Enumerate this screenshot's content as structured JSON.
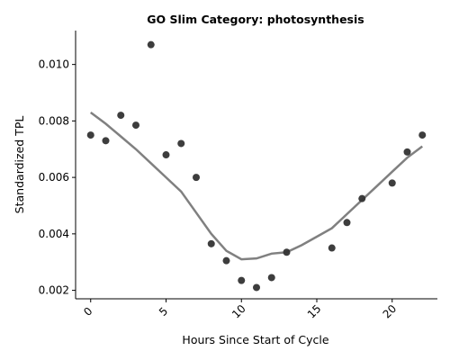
{
  "chart_data": {
    "type": "scatter",
    "title": "GO Slim Category: photosynthesis",
    "xlabel": "Hours Since Start of Cycle",
    "ylabel": "Standardized TPL",
    "xlim": [
      -1,
      23
    ],
    "ylim": [
      0.0017,
      0.0112
    ],
    "x_ticks": [
      0,
      5,
      10,
      15,
      20
    ],
    "y_ticks": [
      0.002,
      0.004,
      0.006,
      0.008,
      0.01
    ],
    "y_tick_labels": [
      "0.002",
      "0.004",
      "0.006",
      "0.008",
      "0.010"
    ],
    "x_tick_labels": [
      "0",
      "5",
      "10",
      "15",
      "20"
    ],
    "grid": false,
    "colors": {
      "points": "#333333",
      "trend": "#808080"
    },
    "series": [
      {
        "type": "scatter",
        "points": [
          {
            "x": 0,
            "y": 0.0075
          },
          {
            "x": 1,
            "y": 0.0073
          },
          {
            "x": 2,
            "y": 0.0082
          },
          {
            "x": 3,
            "y": 0.00785
          },
          {
            "x": 4,
            "y": 0.0107
          },
          {
            "x": 5,
            "y": 0.0068
          },
          {
            "x": 6,
            "y": 0.0072
          },
          {
            "x": 7,
            "y": 0.006
          },
          {
            "x": 8,
            "y": 0.00365
          },
          {
            "x": 9,
            "y": 0.00305
          },
          {
            "x": 10,
            "y": 0.00235
          },
          {
            "x": 11,
            "y": 0.0021
          },
          {
            "x": 12,
            "y": 0.00245
          },
          {
            "x": 13,
            "y": 0.00335
          },
          {
            "x": 16,
            "y": 0.0035
          },
          {
            "x": 17,
            "y": 0.0044
          },
          {
            "x": 18,
            "y": 0.00525
          },
          {
            "x": 20,
            "y": 0.0058
          },
          {
            "x": 21,
            "y": 0.0069
          },
          {
            "x": 22,
            "y": 0.0075
          }
        ]
      },
      {
        "type": "line",
        "points": [
          {
            "x": 0,
            "y": 0.0083
          },
          {
            "x": 1,
            "y": 0.0079
          },
          {
            "x": 2,
            "y": 0.00745
          },
          {
            "x": 3,
            "y": 0.007
          },
          {
            "x": 4,
            "y": 0.0065
          },
          {
            "x": 5,
            "y": 0.006
          },
          {
            "x": 6,
            "y": 0.0055
          },
          {
            "x": 7,
            "y": 0.00475
          },
          {
            "x": 8,
            "y": 0.004
          },
          {
            "x": 9,
            "y": 0.0034
          },
          {
            "x": 10,
            "y": 0.0031
          },
          {
            "x": 11,
            "y": 0.00313
          },
          {
            "x": 12,
            "y": 0.0033
          },
          {
            "x": 13,
            "y": 0.00335
          },
          {
            "x": 14,
            "y": 0.0036
          },
          {
            "x": 15,
            "y": 0.0039
          },
          {
            "x": 16,
            "y": 0.0042
          },
          {
            "x": 17,
            "y": 0.0047
          },
          {
            "x": 18,
            "y": 0.0052
          },
          {
            "x": 19,
            "y": 0.0057
          },
          {
            "x": 20,
            "y": 0.0062
          },
          {
            "x": 21,
            "y": 0.0067
          },
          {
            "x": 22,
            "y": 0.0071
          }
        ]
      }
    ]
  }
}
